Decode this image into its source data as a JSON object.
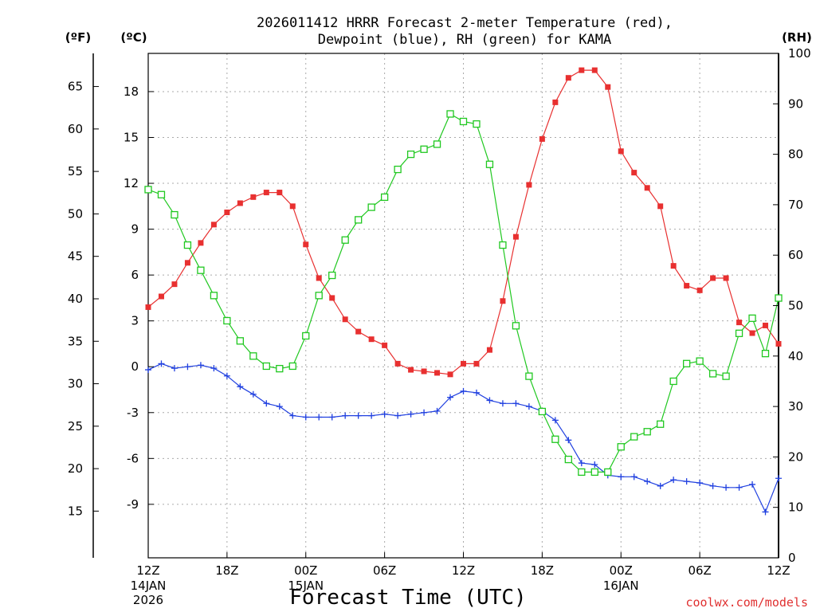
{
  "chart_data": {
    "type": "line",
    "title_line1": "2026011412 HRRR Forecast 2-meter Temperature (red),",
    "title_line2": "Dewpoint (blue), RH (green) for KAMA",
    "xlabel": "Forecast Time (UTC)",
    "credit": "coolwx.com/models",
    "units": {
      "fahrenheit": "(ºF)",
      "celsius": "(ºC)",
      "rh": "(RH)"
    },
    "x_start": "2026-01-14 12Z",
    "x_step_hours": 1,
    "x_ticks": [
      {
        "hour": 0,
        "label": "12Z",
        "sub1": "14JAN",
        "sub2": "2026"
      },
      {
        "hour": 6,
        "label": "18Z"
      },
      {
        "hour": 12,
        "label": "00Z",
        "sub1": "15JAN"
      },
      {
        "hour": 18,
        "label": "06Z"
      },
      {
        "hour": 24,
        "label": "12Z"
      },
      {
        "hour": 30,
        "label": "18Z"
      },
      {
        "hour": 36,
        "label": "00Z",
        "sub1": "16JAN"
      },
      {
        "hour": 42,
        "label": "06Z"
      },
      {
        "hour": 48,
        "label": "12Z"
      }
    ],
    "xlim": [
      0,
      48
    ],
    "ylim_c": [
      -12.5,
      20.5
    ],
    "ylim_rh": [
      0,
      100
    ],
    "y_ticks_c": [
      -9,
      -6,
      -3,
      0,
      3,
      6,
      9,
      12,
      15,
      18
    ],
    "y_ticks_f": [
      15,
      20,
      25,
      30,
      35,
      40,
      45,
      50,
      55,
      60,
      65
    ],
    "y_ticks_rh": [
      0,
      10,
      20,
      30,
      40,
      50,
      60,
      70,
      80,
      90,
      100
    ],
    "grid": true,
    "colors": {
      "temperature": "#e83030",
      "dewpoint": "#2040e0",
      "rh": "#20c820",
      "grid": "#aaaaaa"
    },
    "series": [
      {
        "name": "Temperature",
        "unit": "C",
        "values": [
          3.9,
          4.6,
          5.4,
          6.8,
          8.1,
          9.3,
          10.1,
          10.7,
          11.1,
          11.4,
          11.4,
          10.5,
          8.0,
          5.8,
          4.5,
          3.1,
          2.3,
          1.8,
          1.4,
          0.2,
          -0.2,
          -0.3,
          -0.4,
          -0.5,
          0.2,
          0.2,
          1.1,
          4.3,
          8.5,
          11.9,
          14.9,
          17.3,
          18.9,
          19.4,
          19.4,
          18.3,
          14.1,
          12.7,
          11.7,
          10.5,
          6.6,
          5.3,
          5.0,
          5.8,
          5.8,
          2.9,
          2.2,
          2.7,
          1.5
        ]
      },
      {
        "name": "Dewpoint",
        "unit": "C",
        "values": [
          -0.2,
          0.2,
          -0.1,
          0.0,
          0.1,
          -0.1,
          -0.6,
          -1.3,
          -1.8,
          -2.4,
          -2.6,
          -3.2,
          -3.3,
          -3.3,
          -3.3,
          -3.2,
          -3.2,
          -3.2,
          -3.1,
          -3.2,
          -3.1,
          -3.0,
          -2.9,
          -2.0,
          -1.6,
          -1.7,
          -2.2,
          -2.4,
          -2.4,
          -2.6,
          -2.9,
          -3.5,
          -4.8,
          -6.3,
          -6.4,
          -7.1,
          -7.2,
          -7.2,
          -7.5,
          -7.8,
          -7.4,
          -7.5,
          -7.6,
          -7.8,
          -7.9,
          -7.9,
          -7.7,
          -9.5,
          -7.3
        ]
      },
      {
        "name": "RH",
        "unit": "%",
        "values": [
          73,
          72,
          68,
          62,
          57,
          52,
          47,
          43,
          40,
          38,
          37.5,
          38,
          44,
          52,
          56,
          63,
          67,
          69.5,
          71.5,
          77,
          80,
          81,
          82,
          88,
          86.5,
          86,
          78,
          62,
          46,
          36,
          29,
          23.5,
          19.5,
          17,
          17,
          17,
          22,
          24,
          25,
          26.5,
          35,
          38.5,
          39,
          36.5,
          36,
          44.5,
          47.5,
          40.5,
          51.5
        ]
      }
    ]
  }
}
